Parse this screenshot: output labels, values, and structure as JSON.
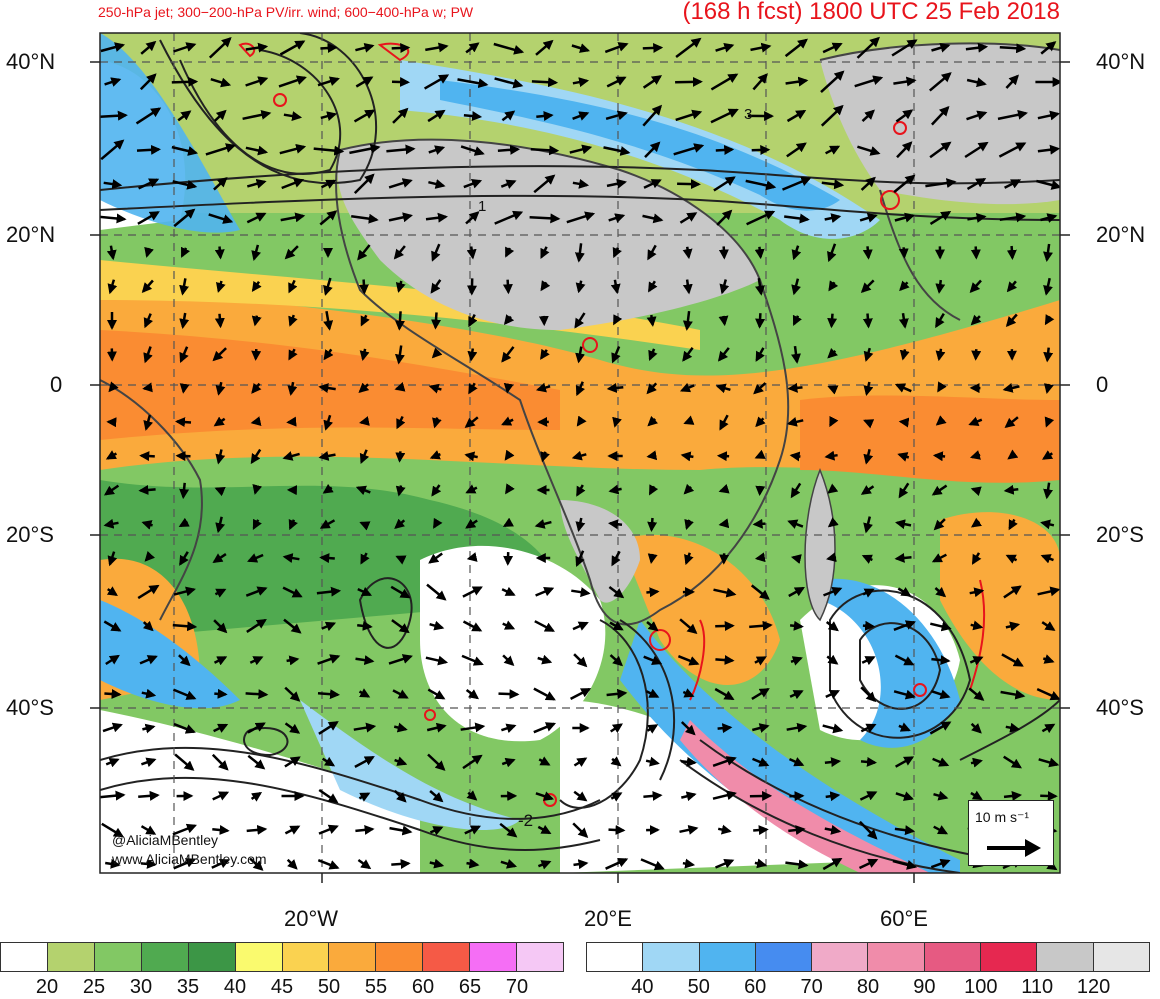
{
  "header": {
    "left": "250-hPa jet; 300−200-hPa PV/irr. wind; 600−400-hPa w; PW",
    "right": "(168 h fcst) 1800 UTC 25 Feb 2018"
  },
  "map": {
    "lat_labels_left": [
      "40°N",
      "20°N",
      "0",
      "20°S",
      "40°S"
    ],
    "lat_labels_right": [
      "40°N",
      "20°N",
      "0",
      "20°S",
      "40°S"
    ],
    "lon_labels": [
      "20°W",
      "20°E",
      "60°E"
    ],
    "contour_labels": [
      "1",
      "3",
      "-2"
    ],
    "watermark": [
      "@AliciaMBentley",
      "www.AliciaMBentley.com"
    ],
    "wind_key": {
      "label": "10 m s⁻¹",
      "value_ms": 10
    },
    "colors": {
      "land": "#c8c8c8",
      "coast": "#444444",
      "contour": "#222222",
      "pv": "#e8141c",
      "wind": "#000000"
    }
  },
  "pw_colorbar": {
    "ticks": [
      "20",
      "25",
      "30",
      "35",
      "40",
      "45",
      "50",
      "55",
      "60",
      "65",
      "70"
    ],
    "colors": [
      "#ffffff",
      "#b4d26e",
      "#82c864",
      "#50aa50",
      "#3c9646",
      "#fafa6e",
      "#fad250",
      "#faaa3c",
      "#fa8c32",
      "#f55a46",
      "#f56ef5",
      "#f5c8f5"
    ]
  },
  "jet_colorbar": {
    "ticks": [
      "40",
      "50",
      "60",
      "70",
      "80",
      "90",
      "100",
      "110",
      "120"
    ],
    "colors": [
      "#ffffff",
      "#a0d7f5",
      "#50b4f0",
      "#468cf0",
      "#f0aac8",
      "#f08caa",
      "#e65a82",
      "#e62850",
      "#c8c8c8",
      "#e6e6e6"
    ]
  }
}
